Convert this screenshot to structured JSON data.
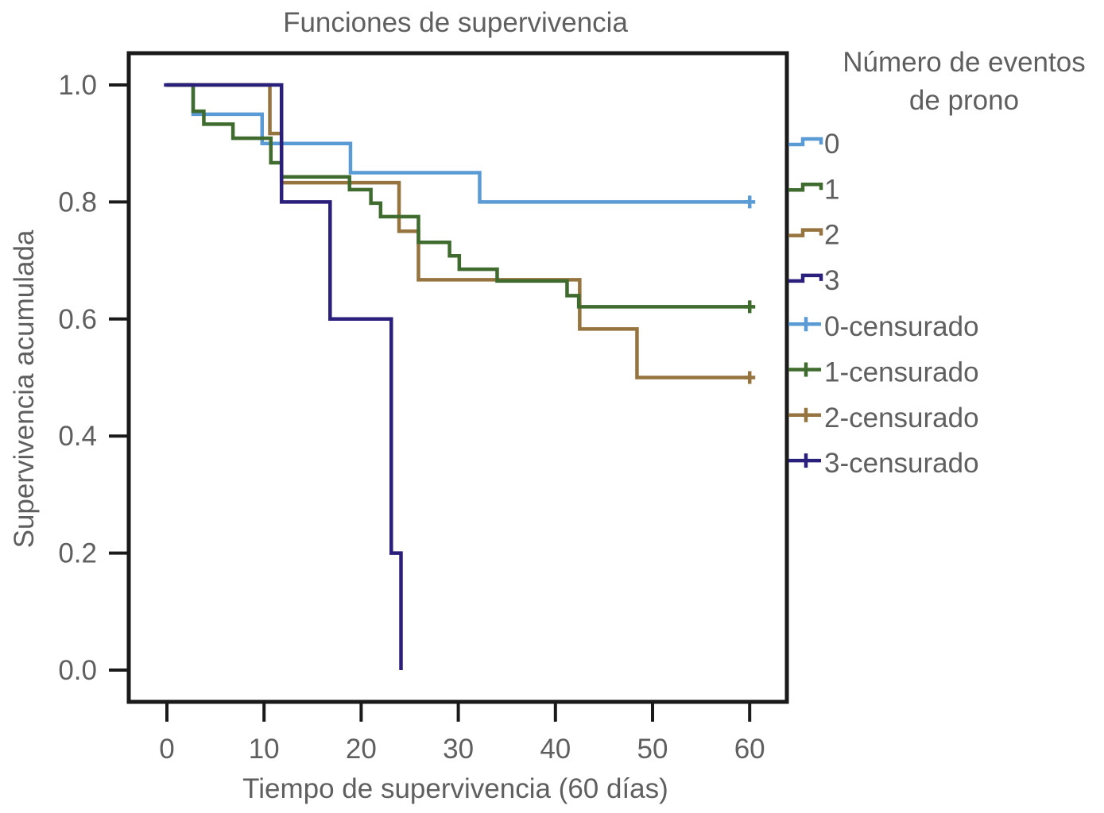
{
  "chart_data": {
    "type": "line",
    "subtype": "kaplan-meier step",
    "title": "Funciones de supervivencia",
    "xlabel": "Tiempo de supervivencia (60 días)",
    "ylabel": "Supervivencia acumulada",
    "xlim": [
      -4,
      64
    ],
    "ylim": [
      -0.06,
      1.055
    ],
    "xticks": [
      0,
      10,
      20,
      30,
      40,
      50,
      60
    ],
    "xtick_labels": [
      "0",
      "10",
      "20",
      "30",
      "40",
      "50",
      "60"
    ],
    "yticks": [
      0.0,
      0.2,
      0.4,
      0.6,
      0.8,
      1.0
    ],
    "ytick_labels": [
      "0.0",
      "0.2",
      "0.4",
      "0.6",
      "0.8",
      "1.0"
    ],
    "grid": false,
    "legend": {
      "title_line1": "Número de eventos",
      "title_line2": "de prono",
      "placement": "right-outside",
      "entries": [
        "0",
        "1",
        "2",
        "3",
        "0-censurado",
        "1-censurado",
        "2-censurado",
        "3-censurado"
      ]
    },
    "series": [
      {
        "name": "0",
        "color": "#5b9bd5",
        "x": [
          0,
          2.7,
          9.8,
          18.9,
          32.2,
          60
        ],
        "y": [
          1.0,
          0.95,
          0.9,
          0.85,
          0.8,
          0.8
        ],
        "censored": [
          [
            60,
            0.8
          ]
        ]
      },
      {
        "name": "1",
        "color": "#3f6b2e",
        "x": [
          0,
          2.7,
          3.8,
          6.8,
          10.7,
          11.8,
          18.8,
          21.0,
          22.0,
          25.9,
          29.1,
          30.1,
          34.0,
          41.2,
          42.4,
          60
        ],
        "y": [
          1.0,
          0.955,
          0.933,
          0.909,
          0.867,
          0.843,
          0.821,
          0.798,
          0.775,
          0.731,
          0.708,
          0.685,
          0.665,
          0.64,
          0.621,
          0.621
        ],
        "censored": [
          [
            60,
            0.621
          ]
        ]
      },
      {
        "name": "2",
        "color": "#96743f",
        "x": [
          0,
          10.6,
          11.8,
          23.9,
          25.9,
          42.5,
          48.4,
          60
        ],
        "y": [
          1.0,
          0.917,
          0.833,
          0.75,
          0.667,
          0.583,
          0.5,
          0.5
        ],
        "censored": [
          [
            60,
            0.5
          ]
        ]
      },
      {
        "name": "3",
        "color": "#2b1f7c",
        "x": [
          -0.3,
          11.8,
          16.8,
          23.1,
          24.1
        ],
        "y": [
          1.0,
          0.8,
          0.6,
          0.2,
          0.0
        ],
        "censored": []
      }
    ]
  }
}
